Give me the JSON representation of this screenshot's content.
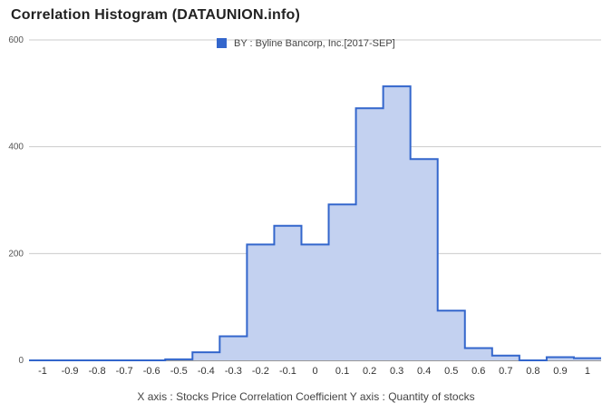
{
  "title": "Correlation Histogram (DATAUNION.info)",
  "xlabel": "X axis : Stocks Price Correlation Coefficient   Y axis : Quantity of stocks",
  "chart_data": {
    "type": "area",
    "title": "Correlation Histogram (DATAUNION.info)",
    "xlabel": "X axis : Stocks Price Correlation Coefficient",
    "ylabel": "Y axis : Quantity of stocks",
    "legend_position": "top",
    "grid": true,
    "xlim": [
      -1.05,
      1.05
    ],
    "ylim": [
      0,
      600
    ],
    "x_ticks": [
      "-1",
      "-0.9",
      "-0.8",
      "-0.7",
      "-0.6",
      "-0.5",
      "-0.4",
      "-0.3",
      "-0.2",
      "-0.1",
      "0",
      "0.1",
      "0.2",
      "0.3",
      "0.4",
      "0.5",
      "0.6",
      "0.7",
      "0.8",
      "0.9",
      "1"
    ],
    "y_ticks": [
      0,
      200,
      400,
      600
    ],
    "step": "centered",
    "series": [
      {
        "name": "BY : Byline Bancorp, Inc.[2017-SEP]",
        "color": "#3366cc",
        "fill": "#c3d1f0",
        "x": [
          -1,
          -0.9,
          -0.8,
          -0.7,
          -0.6,
          -0.5,
          -0.4,
          -0.3,
          -0.2,
          -0.1,
          0,
          0.1,
          0.2,
          0.3,
          0.4,
          0.5,
          0.6,
          0.7,
          0.8,
          0.9,
          1
        ],
        "values": [
          0,
          0,
          0,
          0,
          0,
          2,
          15,
          45,
          217,
          252,
          217,
          292,
          472,
          513,
          377,
          93,
          23,
          9,
          0,
          6,
          4
        ]
      }
    ]
  }
}
